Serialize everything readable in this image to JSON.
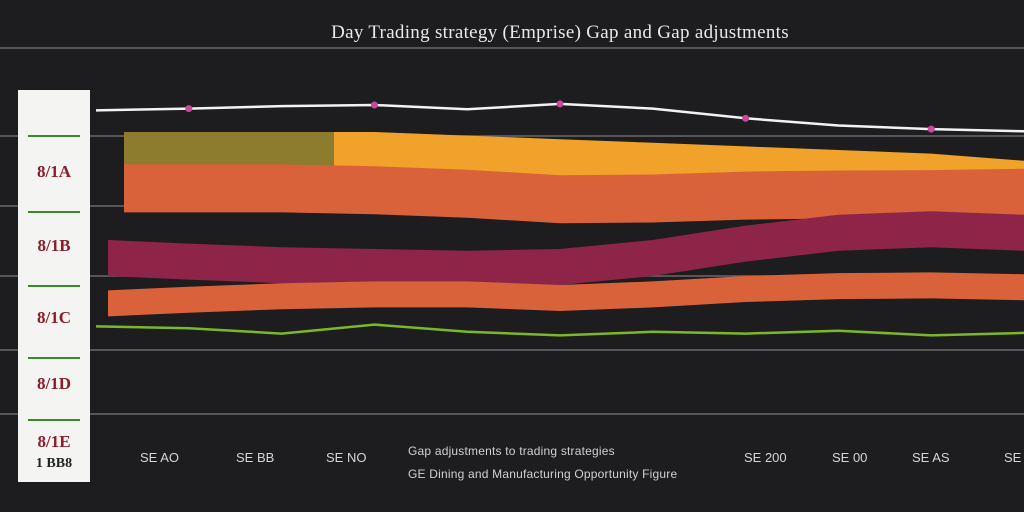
{
  "title": "Day Trading strategy (Emprise) Gap and Gap adjustments",
  "legend": {
    "items": [
      "8/1A",
      "8/1B",
      "8/1C",
      "8/1D",
      "8/1E",
      "1 BB8"
    ]
  },
  "captions": {
    "line1": "Gap adjustments to trading strategies",
    "line2": "GE Dining and Manufacturing Opportunity Figure"
  },
  "colors": {
    "background": "#1d1d1f",
    "price_line": "#f2f2f2",
    "olive": "#8e7c2e",
    "orange": "#f0a22a",
    "red_orange": "#d9623a",
    "crimson": "#8e2548",
    "volume": "#7ab829",
    "grid": "#6a6a6a"
  },
  "chart_data": {
    "type": "area",
    "title": "Day Trading strategy (Emprise) Gap and Gap adjustments",
    "xlabel": "",
    "ylabel": "",
    "x_tick_labels": [
      "SE AO",
      "SE BB",
      "SE NO",
      "SE 200",
      "SE 00",
      "SE AS",
      "SE"
    ],
    "grid": true,
    "legend_position": "left",
    "ylim": [
      0,
      100
    ],
    "x": [
      0,
      10,
      20,
      30,
      40,
      50,
      60,
      70,
      80,
      90,
      100
    ],
    "series": [
      {
        "name": "",
        "kind": "line",
        "values": [
          86,
          86.5,
          87.2,
          87.5,
          86.3,
          87.8,
          86.5,
          83.8,
          81.8,
          80.8,
          80.2
        ]
      },
      {
        "name": "",
        "kind": "band",
        "values": [
          80,
          80,
          80,
          80,
          79,
          78,
          77,
          76,
          75,
          74,
          72
        ]
      },
      {
        "name": "",
        "kind": "band",
        "values": [
          71,
          71,
          71,
          70.5,
          69.5,
          68,
          68.2,
          69,
          69.3,
          69.4,
          69.8
        ]
      },
      {
        "name": "",
        "kind": "band",
        "values": [
          50,
          49,
          48,
          47.5,
          47,
          47.5,
          50,
          54,
          57,
          58,
          57
        ]
      },
      {
        "name": "",
        "kind": "band",
        "values": [
          36,
          37,
          38,
          38.5,
          38.5,
          37.5,
          38.5,
          40,
          40.8,
          41,
          40.5
        ]
      },
      {
        "name": "",
        "kind": "volume",
        "values": [
          26,
          25.5,
          24,
          26.5,
          24.5,
          23.5,
          24.5,
          24,
          24.8,
          23.5,
          24.2
        ]
      }
    ]
  }
}
